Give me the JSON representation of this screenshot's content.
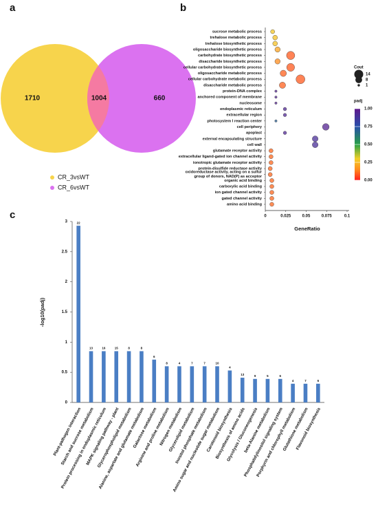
{
  "chart_data": [
    {
      "type": "venn",
      "panel_label": "a",
      "series": [
        {
          "name": "CR_3vsWT",
          "color": "#f7d44c"
        },
        {
          "name": "CR_6vsWT",
          "color": "#db72f0"
        }
      ],
      "regions": [
        1710,
        1004,
        660
      ]
    },
    {
      "type": "bubble",
      "panel_label": "b",
      "x_label": "GeneRatio",
      "categories": [
        "sucrose metabolic process",
        "trehalose metabolic process",
        "trehalose biosynthetic process",
        "oligosaccharide biosynthetic process",
        "carbohydrate biosynthetic process",
        "disaccharide biosynthetic process",
        "cellular carbohydrate biosynthetic process",
        "oligosaccharide metabolic process",
        "cellular carbohydrate metabolic process",
        "disaccharide metabolic process",
        "protein-DNA complex",
        "anchored component of membrane",
        "nucleosome",
        "endoplasmic reticulum",
        "extracellular region",
        "photosystem I reaction center",
        "cell periphery",
        "apoplast",
        "external encapsulating structure",
        "cell wall",
        "glutamate receptor activity",
        "extracellular ligand-gated ion channel activity",
        "ionotropic glutamate receptor activity",
        "protein-disulfide reductase activity",
        "oxidoreductase activity, acting on a sulfur\ngroup of donors, NAD(P) as acceptor",
        "organic acid binding",
        "carboxylic acid binding",
        "ion gated channel activity",
        "gated channel activity",
        "amino acid binding"
      ],
      "values": [
        0.009,
        0.012,
        0.012,
        0.015,
        0.031,
        0.015,
        0.031,
        0.022,
        0.043,
        0.021,
        0.013,
        0.013,
        0.013,
        0.024,
        0.024,
        0.013,
        0.074,
        0.024,
        0.061,
        0.061,
        0.007,
        0.007,
        0.007,
        0.006,
        0.006,
        0.008,
        0.008,
        0.008,
        0.008,
        0.008
      ],
      "sizes": [
        3,
        4,
        4,
        5,
        12,
        5,
        11,
        7,
        14,
        7,
        1,
        1,
        1,
        2,
        2,
        1,
        8,
        2,
        6,
        6,
        3,
        3,
        3,
        3,
        3,
        3,
        3,
        3,
        3,
        3
      ],
      "padj": [
        0.28,
        0.27,
        0.27,
        0.2,
        0.08,
        0.15,
        0.08,
        0.09,
        0.08,
        0.09,
        0.95,
        0.95,
        0.95,
        0.93,
        0.93,
        0.7,
        0.95,
        0.93,
        0.9,
        0.9,
        0.1,
        0.1,
        0.1,
        0.1,
        0.1,
        0.1,
        0.1,
        0.1,
        0.1,
        0.1
      ],
      "xlim": [
        0,
        0.1
      ],
      "xticks": [
        0,
        0.025,
        0.05,
        0.075,
        0.1
      ],
      "size_legend": {
        "title": "Cout",
        "values": [
          14,
          8,
          1
        ]
      },
      "color_legend": {
        "title": "padj",
        "clim": [
          0,
          1
        ],
        "ticks": [
          {
            "value": 1,
            "label": "1.00"
          },
          {
            "value": 0.75,
            "label": "0.75"
          },
          {
            "value": 0.5,
            "label": "0.50"
          },
          {
            "value": 0.25,
            "label": "0.25"
          },
          {
            "value": 0,
            "label": "0.00"
          }
        ]
      }
    },
    {
      "type": "bar",
      "panel_label": "c",
      "y_label": "-log10(padj)",
      "color": "#4a7ec4",
      "categories": [
        "Plant-pathogen interaction",
        "Starch and sucrose metabolism",
        "Protein processing in endoplasmic reticulum",
        "MAPK signaling pathway - plant",
        "Glycerophospholipid metabolism",
        "Alanine, aspartate and glutamate metabolism",
        "Galactose metabolism",
        "Arginine and proline metabolism",
        "Nitrogen metabolism",
        "Glycerolipid metabolism",
        "Inositol phosphate metabolism",
        "Amino sugar and nucleotide sugar metabolism",
        "Carotenoid biosynthesis",
        "Biosynthesis of amino acids",
        "Glycolysis / Gluconeogenesis",
        "beta-Alanine metabolism",
        "Phosphatidylinositol signaling system",
        "Porphyrin and chlorophyll metabolism",
        "Glutathione metabolism",
        "Flavonoid biosynthesis"
      ],
      "values": [
        2.93,
        0.85,
        0.85,
        0.85,
        0.85,
        0.85,
        0.71,
        0.6,
        0.6,
        0.6,
        0.6,
        0.6,
        0.53,
        0.41,
        0.39,
        0.39,
        0.39,
        0.31,
        0.31,
        0.31
      ],
      "counts": [
        22,
        13,
        16,
        15,
        8,
        8,
        6,
        8,
        4,
        7,
        7,
        10,
        4,
        13,
        9,
        5,
        6,
        4,
        7,
        6
      ],
      "ylim": [
        0,
        3
      ],
      "yticks": [
        0,
        0.5,
        1,
        1.5,
        2,
        2.5,
        3
      ]
    }
  ]
}
